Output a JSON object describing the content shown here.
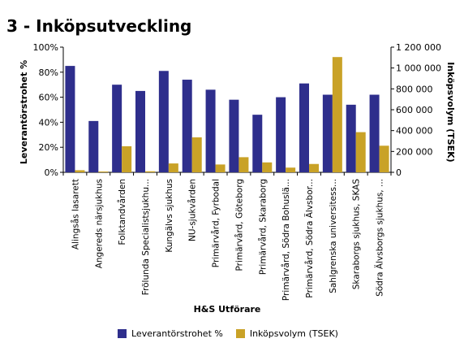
{
  "title": "3 - Inköpsutveckling",
  "chart_data": {
    "type": "bar",
    "xlabel": "H&S Utförare",
    "ylabel_left": "Leverantörstrohet %",
    "ylabel_right": "Inköpsvolym (TSEK)",
    "ylim_left": [
      0,
      100
    ],
    "ylim_right": [
      0,
      1200000
    ],
    "yticks_left": [
      "0%",
      "20%",
      "40%",
      "60%",
      "80%",
      "100%"
    ],
    "yticks_right": [
      "0",
      "200 000",
      "400 000",
      "600 000",
      "800 000",
      "1 000 000",
      "1 200 000"
    ],
    "grid": false,
    "legend_position": "bottom",
    "categories": [
      "Alingsås lasarett",
      "Angereds närsjukhus",
      "Folktandvården",
      "Frölunda Specialistsjukhu...",
      "Kungälvs sjukhus",
      "NU-sjukvården",
      "Primärvård, Fyrbodal",
      "Primärvård, Göteborg",
      "Primärvård, Skaraborg",
      "Primärvård, Södra Bohuslä...",
      "Primärvård, Södra Älvsbor...",
      "Sahlgrenska universitess...",
      "Skaraborgs sjukhus, SKAS",
      "Södra Älvsborgs sjukhus, ..."
    ],
    "series": [
      {
        "name": "Leverantörstrohet %",
        "axis": "left",
        "color": "#2e2e8c",
        "values": [
          85,
          41,
          70,
          65,
          81,
          74,
          66,
          58,
          46,
          60,
          71,
          62,
          54,
          62
        ]
      },
      {
        "name": "Inköpsvolym (TSEK)",
        "axis": "right",
        "color": "#c9a227",
        "values": [
          20000,
          3000,
          250000,
          10000,
          85000,
          335000,
          75000,
          145000,
          95000,
          45000,
          80000,
          1105000,
          385000,
          255000
        ]
      }
    ]
  }
}
